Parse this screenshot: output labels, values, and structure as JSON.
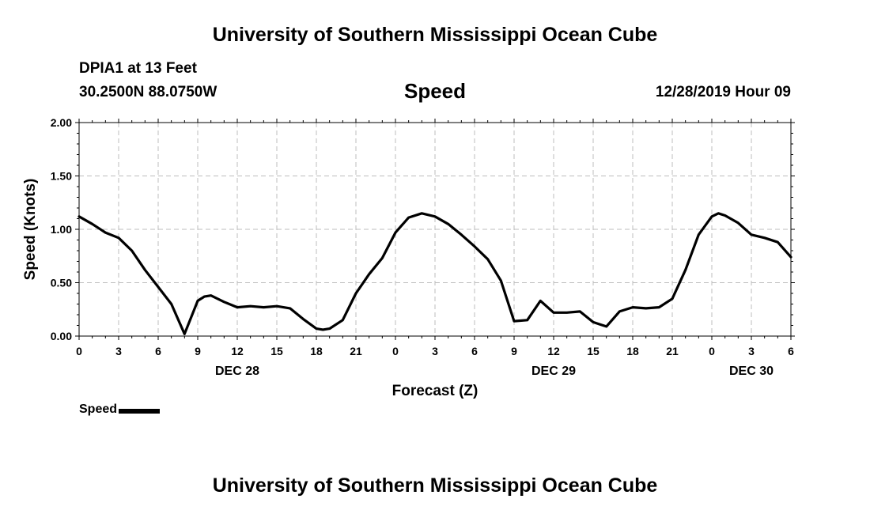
{
  "header": {
    "top_title": "University of Southern Mississippi Ocean Cube",
    "station": "DPIA1 at 13 Feet",
    "coords": "30.2500N 88.0750W",
    "timestamp": "12/28/2019 Hour 09",
    "bottom_title": "University of Southern Mississippi Ocean Cube"
  },
  "chart_data": {
    "type": "line",
    "title": "Speed",
    "xlabel": "Forecast (Z)",
    "ylabel": "Speed (Knots)",
    "ylim": [
      0,
      2
    ],
    "yticks": [
      "0.00",
      "0.50",
      "1.00",
      "1.50",
      "2.00"
    ],
    "yticks_values": [
      0,
      0.5,
      1.0,
      1.5,
      2.0
    ],
    "xlim": [
      0,
      54
    ],
    "xticks_values": [
      0,
      3,
      6,
      9,
      12,
      15,
      18,
      21,
      24,
      27,
      30,
      33,
      36,
      39,
      42,
      45,
      48,
      51,
      54
    ],
    "xticks": [
      "0",
      "3",
      "6",
      "9",
      "12",
      "15",
      "18",
      "21",
      "0",
      "3",
      "6",
      "9",
      "12",
      "15",
      "18",
      "21",
      "0",
      "3",
      "6"
    ],
    "day_labels": [
      {
        "text": "DEC 28",
        "x": 12
      },
      {
        "text": "DEC 29",
        "x": 36
      },
      {
        "text": "DEC 30",
        "x": 51
      }
    ],
    "grid": true,
    "legend_position": "bottom-left",
    "series": [
      {
        "name": "Speed",
        "color": "#000000",
        "x": [
          0,
          1,
          2,
          3,
          4,
          5,
          6,
          7,
          8,
          9,
          9.5,
          10,
          11,
          12,
          13,
          14,
          15,
          16,
          17,
          18,
          18.5,
          19,
          20,
          21,
          22,
          23,
          24,
          25,
          26,
          27,
          28,
          29,
          30,
          31,
          32,
          33,
          34,
          35,
          36,
          37,
          38,
          39,
          40,
          41,
          42,
          43,
          44,
          45,
          46,
          47,
          48,
          48.5,
          49,
          50,
          51,
          52,
          53,
          54
        ],
        "values": [
          1.12,
          1.05,
          0.97,
          0.92,
          0.8,
          0.62,
          0.46,
          0.3,
          0.02,
          0.33,
          0.37,
          0.38,
          0.32,
          0.27,
          0.28,
          0.27,
          0.28,
          0.26,
          0.16,
          0.07,
          0.06,
          0.07,
          0.15,
          0.4,
          0.58,
          0.73,
          0.97,
          1.11,
          1.15,
          1.12,
          1.05,
          0.95,
          0.84,
          0.72,
          0.52,
          0.14,
          0.15,
          0.33,
          0.22,
          0.22,
          0.23,
          0.13,
          0.09,
          0.23,
          0.27,
          0.26,
          0.27,
          0.35,
          0.62,
          0.95,
          1.12,
          1.15,
          1.13,
          1.06,
          0.95,
          0.92,
          0.88,
          0.74
        ]
      }
    ],
    "legend_label": "Speed"
  }
}
